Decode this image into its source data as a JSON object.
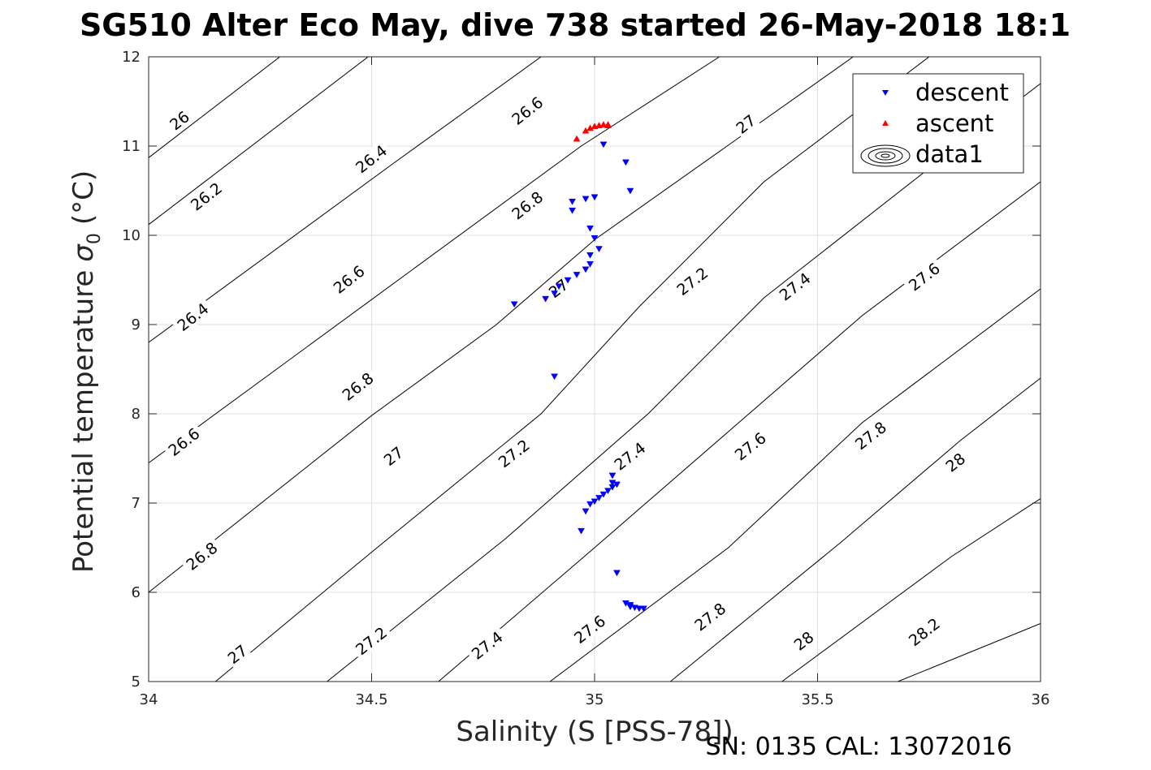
{
  "chart_data": {
    "type": "scatter",
    "title": "SG510 Alter Eco May, dive 738 started 26-May-2018 18:1",
    "xlabel": "Salinity (S [PSS-78])",
    "ylabel": "Potential temperature",
    "ylabel_sigma": "σ",
    "ylabel_sub": "0",
    "ylabel_unit": "(°C)",
    "footer": "SN: 0135  CAL: 13072016",
    "xlim": [
      34,
      36
    ],
    "ylim": [
      5,
      12
    ],
    "x_ticks": [
      34,
      34.5,
      35,
      35.5,
      36
    ],
    "x_tick_labels": [
      "34",
      "34.5",
      "35",
      "35.5",
      "36"
    ],
    "y_ticks": [
      5,
      6,
      7,
      8,
      9,
      10,
      11,
      12
    ],
    "y_tick_labels": [
      "5",
      "6",
      "7",
      "8",
      "9",
      "10",
      "11",
      "12"
    ],
    "grid": true,
    "legend_position": "top-right",
    "legend": [
      {
        "label": "descent",
        "marker": "triangle-down",
        "color": "#0000ff"
      },
      {
        "label": "ascent",
        "marker": "triangle-up",
        "color": "#ff0000"
      },
      {
        "label": "data1",
        "marker": "contour",
        "color": "#000000"
      }
    ],
    "contours": {
      "color": "#000000",
      "levels": [
        {
          "level": "26",
          "segments": [
            [
              [
                34.0,
                10.87
              ],
              [
                34.5,
                12.79
              ]
            ]
          ],
          "labels": [
            {
              "x": 34.07,
              "y": 11.28,
              "text": "26"
            }
          ]
        },
        {
          "level": "26.2",
          "segments": [
            [
              [
                34.0,
                10.12
              ],
              [
                34.5,
                12.03
              ]
            ]
          ],
          "labels": [
            {
              "x": 34.13,
              "y": 10.43,
              "text": "26.2"
            }
          ]
        },
        {
          "level": "26.4",
          "segments": [
            [
              [
                34.0,
                8.8
              ],
              [
                34.55,
                10.81
              ],
              [
                34.88,
                12.0
              ]
            ]
          ],
          "labels": [
            {
              "x": 34.1,
              "y": 9.08,
              "text": "26.4"
            },
            {
              "x": 34.5,
              "y": 10.85,
              "text": "26.4"
            }
          ]
        },
        {
          "level": "26.6",
          "segments": [
            [
              [
                34.0,
                7.45
              ],
              [
                34.5,
                9.28
              ],
              [
                34.97,
                11.0
              ],
              [
                35.28,
                12.0
              ]
            ]
          ],
          "labels": [
            {
              "x": 34.08,
              "y": 7.68,
              "text": "26.6"
            },
            {
              "x": 34.45,
              "y": 9.5,
              "text": "26.6"
            },
            {
              "x": 34.85,
              "y": 11.39,
              "text": "26.6"
            }
          ]
        },
        {
          "level": "26.8",
          "segments": [
            [
              [
                34.0,
                6.0
              ],
              [
                34.5,
                7.98
              ],
              [
                34.78,
                9.0
              ],
              [
                35.0,
                9.95
              ],
              [
                35.58,
                12.0
              ]
            ]
          ],
          "labels": [
            {
              "x": 34.12,
              "y": 6.4,
              "text": "26.8"
            },
            {
              "x": 34.47,
              "y": 8.3,
              "text": "26.8"
            },
            {
              "x": 34.85,
              "y": 10.33,
              "text": "26.8"
            }
          ]
        },
        {
          "level": "27",
          "segments": [
            [
              [
                34.15,
                5.0
              ],
              [
                34.5,
                6.45
              ],
              [
                34.88,
                8.0
              ],
              [
                35.1,
                9.2
              ],
              [
                35.38,
                10.6
              ],
              [
                35.75,
                12.0
              ]
            ]
          ],
          "labels": [
            {
              "x": 34.2,
              "y": 5.3,
              "text": "27"
            },
            {
              "x": 34.55,
              "y": 7.52,
              "text": "27"
            },
            {
              "x": 34.92,
              "y": 9.4,
              "text": "27"
            },
            {
              "x": 35.34,
              "y": 11.24,
              "text": "27"
            }
          ]
        },
        {
          "level": "27.2",
          "segments": [
            [
              [
                34.4,
                5.0
              ],
              [
                34.8,
                6.6
              ],
              [
                35.12,
                8.0
              ],
              [
                35.38,
                9.3
              ],
              [
                35.75,
                10.75
              ],
              [
                36.0,
                11.7
              ]
            ]
          ],
          "labels": [
            {
              "x": 34.5,
              "y": 5.45,
              "text": "27.2"
            },
            {
              "x": 34.82,
              "y": 7.55,
              "text": "27.2"
            },
            {
              "x": 35.22,
              "y": 9.48,
              "text": "27.2"
            }
          ]
        },
        {
          "level": "27.4",
          "segments": [
            [
              [
                34.65,
                5.0
              ],
              [
                35.0,
                6.5
              ],
              [
                35.3,
                7.8
              ],
              [
                35.6,
                9.1
              ],
              [
                36.0,
                10.6
              ]
            ]
          ],
          "labels": [
            {
              "x": 34.76,
              "y": 5.4,
              "text": "27.4"
            },
            {
              "x": 35.08,
              "y": 7.52,
              "text": "27.4"
            },
            {
              "x": 35.45,
              "y": 9.42,
              "text": "27.4"
            }
          ]
        },
        {
          "level": "27.6",
          "segments": [
            [
              [
                34.9,
                5.0
              ],
              [
                35.3,
                6.5
              ],
              [
                35.6,
                7.9
              ],
              [
                36.0,
                9.4
              ]
            ]
          ],
          "labels": [
            {
              "x": 34.99,
              "y": 5.58,
              "text": "27.6"
            },
            {
              "x": 35.35,
              "y": 7.63,
              "text": "27.6"
            },
            {
              "x": 35.74,
              "y": 9.53,
              "text": "27.6"
            }
          ]
        },
        {
          "level": "27.8",
          "segments": [
            [
              [
                35.17,
                5.0
              ],
              [
                35.55,
                6.55
              ],
              [
                35.82,
                7.7
              ],
              [
                36.0,
                8.4
              ]
            ]
          ],
          "labels": [
            {
              "x": 35.26,
              "y": 5.72,
              "text": "27.8"
            },
            {
              "x": 35.62,
              "y": 7.75,
              "text": "27.8"
            }
          ]
        },
        {
          "level": "28",
          "segments": [
            [
              [
                35.42,
                5.0
              ],
              [
                35.8,
                6.4
              ],
              [
                36.0,
                7.05
              ]
            ]
          ],
          "labels": [
            {
              "x": 35.47,
              "y": 5.45,
              "text": "28"
            },
            {
              "x": 35.81,
              "y": 7.45,
              "text": "28"
            }
          ]
        },
        {
          "level": "28.2",
          "segments": [
            [
              [
                35.68,
                5.0
              ],
              [
                36.0,
                5.65
              ]
            ]
          ],
          "labels": [
            {
              "x": 35.74,
              "y": 5.55,
              "text": "28.2"
            }
          ]
        }
      ]
    },
    "series": [
      {
        "name": "descent",
        "marker": "triangle-down",
        "color": "#0000ff",
        "points": [
          [
            35.02,
            11.02
          ],
          [
            35.07,
            10.82
          ],
          [
            35.08,
            10.5
          ],
          [
            34.95,
            10.38
          ],
          [
            34.98,
            10.41
          ],
          [
            35.0,
            10.43
          ],
          [
            34.95,
            10.28
          ],
          [
            34.99,
            10.08
          ],
          [
            35.0,
            9.97
          ],
          [
            35.01,
            9.85
          ],
          [
            34.99,
            9.78
          ],
          [
            34.99,
            9.68
          ],
          [
            34.98,
            9.62
          ],
          [
            34.96,
            9.56
          ],
          [
            34.94,
            9.5
          ],
          [
            34.92,
            9.43
          ],
          [
            34.91,
            9.35
          ],
          [
            34.89,
            9.29
          ],
          [
            34.82,
            9.23
          ],
          [
            34.91,
            8.42
          ],
          [
            35.04,
            7.31
          ],
          [
            35.04,
            7.23
          ],
          [
            35.05,
            7.21
          ],
          [
            35.04,
            7.18
          ],
          [
            35.03,
            7.14
          ],
          [
            35.02,
            7.1
          ],
          [
            35.01,
            7.06
          ],
          [
            35.0,
            7.02
          ],
          [
            34.99,
            6.99
          ],
          [
            34.98,
            6.91
          ],
          [
            34.97,
            6.69
          ],
          [
            35.05,
            6.22
          ],
          [
            35.07,
            5.88
          ],
          [
            35.08,
            5.86
          ],
          [
            35.08,
            5.84
          ],
          [
            35.09,
            5.83
          ],
          [
            35.1,
            5.82
          ],
          [
            35.11,
            5.82
          ]
        ]
      },
      {
        "name": "ascent",
        "marker": "triangle-up",
        "color": "#ff0000",
        "points": [
          [
            34.96,
            11.08
          ],
          [
            34.98,
            11.17
          ],
          [
            34.99,
            11.2
          ],
          [
            35.0,
            11.22
          ],
          [
            35.01,
            11.23
          ],
          [
            35.02,
            11.24
          ],
          [
            35.03,
            11.24
          ],
          [
            35.03,
            11.23
          ]
        ]
      }
    ]
  }
}
